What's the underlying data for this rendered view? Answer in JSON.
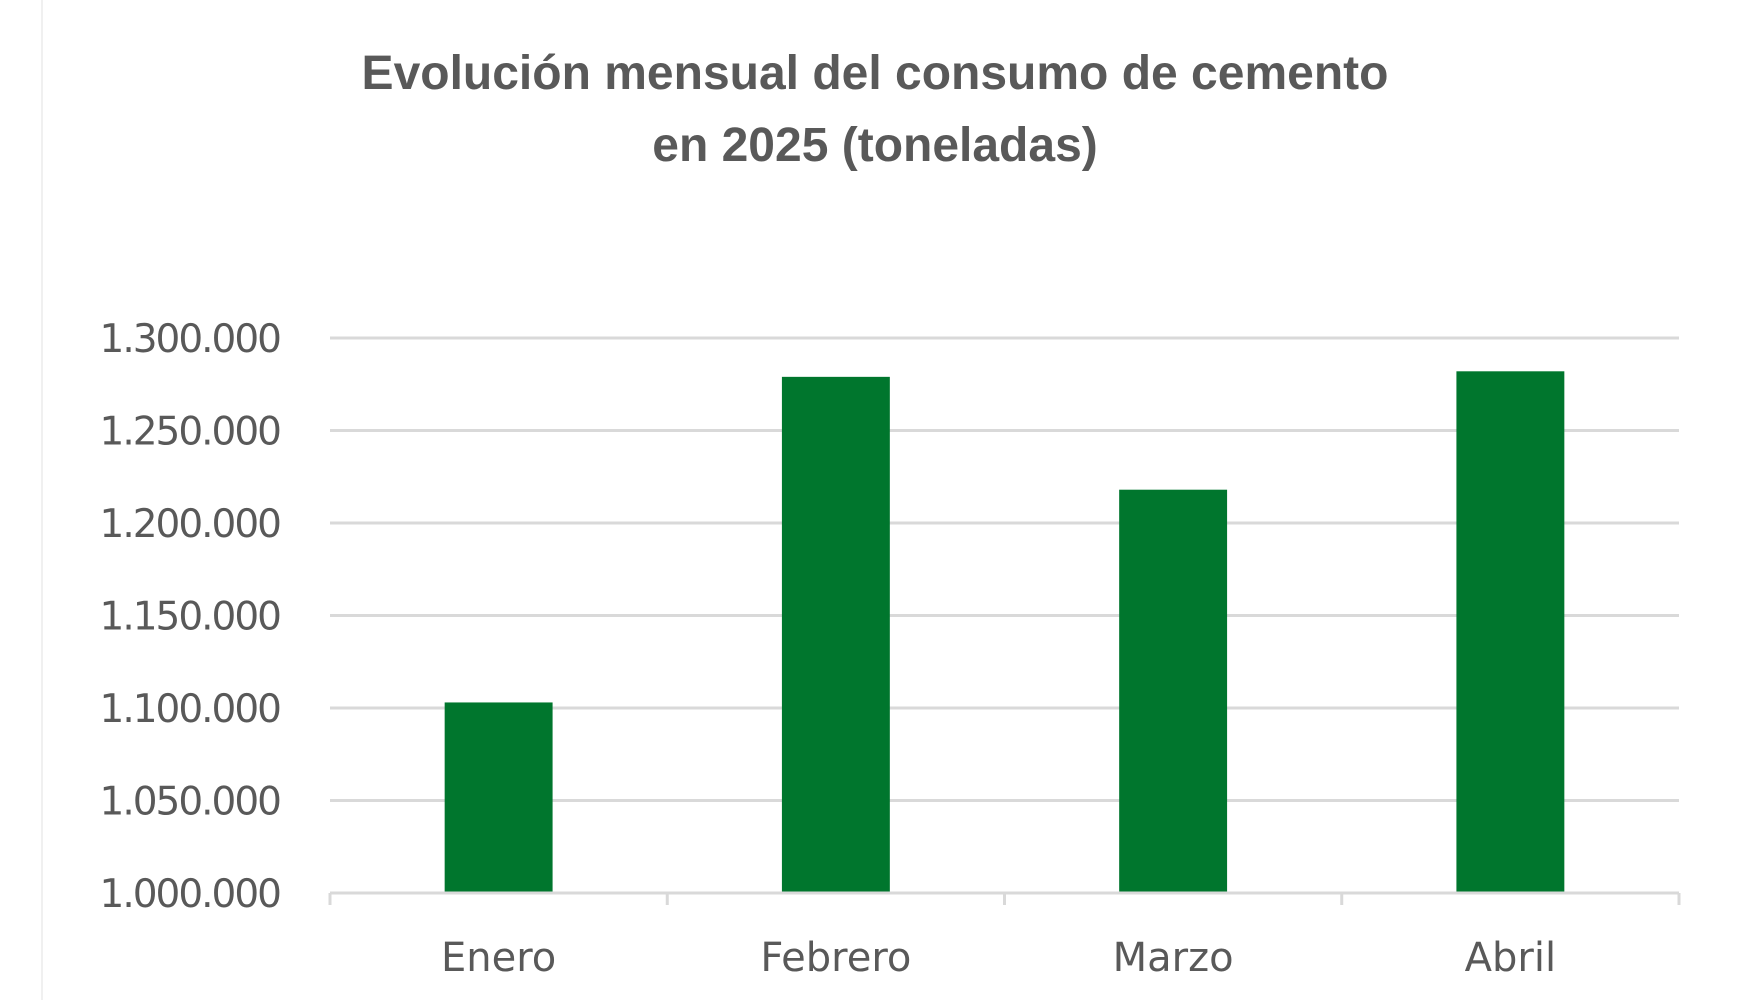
{
  "chart_data": {
    "type": "bar",
    "title_lines": [
      "Evolución mensual del consumo de cemento",
      "en 2025 (toneladas)"
    ],
    "categories": [
      "Enero",
      "Febrero",
      "Marzo",
      "Abril"
    ],
    "values": [
      1103000,
      1279000,
      1218000,
      1282000
    ],
    "yticks": [
      1000000,
      1050000,
      1100000,
      1150000,
      1200000,
      1250000,
      1300000
    ],
    "ytick_labels": [
      "1.000.000",
      "1.050.000",
      "1.100.000",
      "1.150.000",
      "1.200.000",
      "1.250.000",
      "1.300.000"
    ],
    "ylim": [
      1000000,
      1300000
    ],
    "xlabel": "",
    "ylabel": "",
    "grid": true,
    "legend": "none",
    "colors": {
      "bar": "#00762D",
      "grid": "#d9d9d9",
      "text": "#595959"
    }
  }
}
